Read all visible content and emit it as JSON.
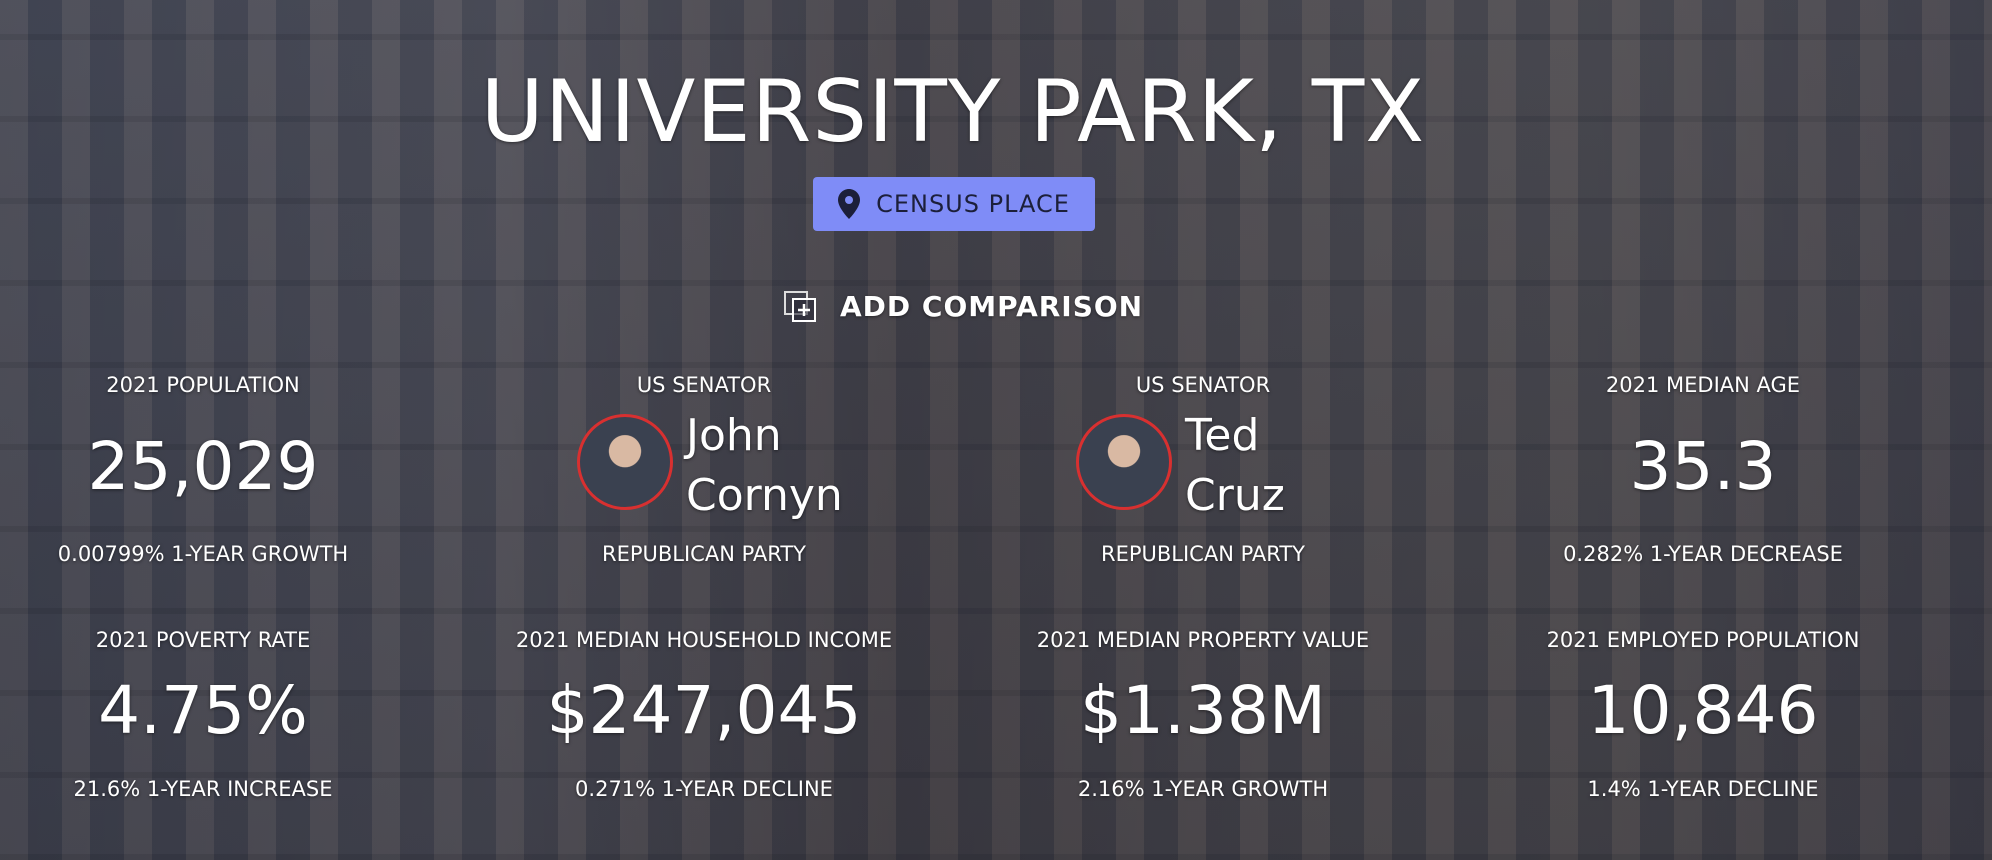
{
  "header": {
    "title": "UNIVERSITY PARK, TX",
    "badge": "CENSUS PLACE",
    "action": "ADD COMPARISON"
  },
  "stats": [
    {
      "label": "2021 POPULATION",
      "value": "25,029",
      "sub": "0.00799% 1-YEAR GROWTH"
    },
    {
      "label": "US SENATOR",
      "name": [
        "John",
        "Cornyn"
      ],
      "sub": "REPUBLICAN PARTY"
    },
    {
      "label": "US SENATOR",
      "name": [
        "Ted",
        "Cruz"
      ],
      "sub": "REPUBLICAN PARTY"
    },
    {
      "label": "2021 MEDIAN AGE",
      "value": "35.3",
      "sub": "0.282% 1-YEAR DECREASE"
    },
    {
      "label": "2021 POVERTY RATE",
      "value": "4.75%",
      "sub": "21.6% 1-YEAR INCREASE"
    },
    {
      "label": "2021 MEDIAN HOUSEHOLD INCOME",
      "value": "$247,045",
      "sub": "0.271% 1-YEAR DECLINE"
    },
    {
      "label": "2021 MEDIAN PROPERTY VALUE",
      "value": "$1.38M",
      "sub": "2.16% 1-YEAR GROWTH"
    },
    {
      "label": "2021 EMPLOYED POPULATION",
      "value": "10,846",
      "sub": "1.4% 1-YEAR DECLINE"
    }
  ]
}
